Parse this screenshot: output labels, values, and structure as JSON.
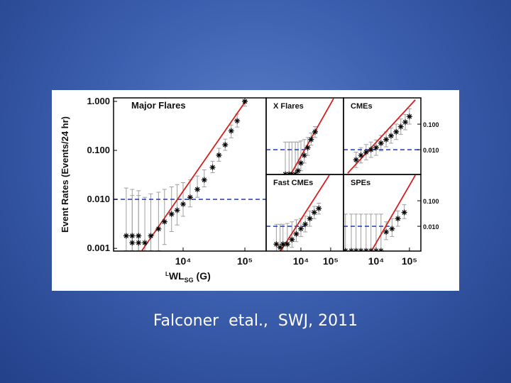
{
  "caption": "Falconer  etal.,  SWJ, 2011",
  "chart_data": [
    {
      "type": "scatter",
      "title": "Major Flares",
      "ylabel": "Event Rates (Events/24 hr)",
      "xlabel": [
        "L",
        "WL",
        "SG",
        " (G)"
      ],
      "xscale": "log",
      "yscale": "log",
      "xlim": [
        748,
        221000
      ],
      "ylim": [
        0.00088,
        1.18
      ],
      "xticks": [
        {
          "value": 10000,
          "label": "10⁴"
        },
        {
          "value": 100000,
          "label": "10⁵"
        }
      ],
      "yticks": [
        {
          "value": 1,
          "label": "1.000"
        },
        {
          "value": 0.1,
          "label": "0.100"
        },
        {
          "value": 0.01,
          "label": "0.010"
        },
        {
          "value": 0.001,
          "label": "0.001"
        }
      ],
      "x": [
        1200,
        1500,
        1900,
        1500,
        1900,
        2400,
        3000,
        4000,
        5000,
        6500,
        8000,
        10000,
        13000,
        17000,
        22000,
        30000,
        38000,
        48000,
        60000,
        75000,
        100000
      ],
      "y": [
        0.0018,
        0.0018,
        0.0018,
        0.0013,
        0.0013,
        0.0013,
        0.0018,
        0.0025,
        0.0035,
        0.005,
        0.006,
        0.008,
        0.011,
        0.016,
        0.025,
        0.045,
        0.08,
        0.13,
        0.25,
        0.4,
        1.0
      ],
      "ylow": [
        0.0009,
        0.0009,
        0.0009,
        0.0009,
        0.0009,
        0.0009,
        0.0009,
        0.0009,
        0.0012,
        0.0022,
        0.003,
        0.0045,
        0.007,
        0.011,
        0.018,
        0.035,
        0.06,
        0.1,
        0.18,
        0.3,
        0.8
      ],
      "yhigh": [
        0.017,
        0.016,
        0.015,
        0.012,
        0.012,
        0.011,
        0.013,
        0.014,
        0.016,
        0.018,
        0.02,
        0.022,
        0.025,
        0.03,
        0.04,
        0.06,
        0.11,
        0.17,
        0.33,
        0.55,
        1.05
      ],
      "fit_x": [
        2150,
        105000
      ],
      "fit_y": [
        0.0009,
        1.05
      ],
      "reference_y": 0.01,
      "reference_x_end": 221000,
      "color": "#000000",
      "error_color": "#a0a0a0",
      "fit_color": "#d42020",
      "reference_color": "#2848c8"
    },
    {
      "type": "scatter",
      "title": "X Flares",
      "xscale": "log",
      "yscale": "log",
      "xlim": [
        680,
        270000
      ],
      "ylim": [
        0.00107,
        1.07
      ],
      "x": [
        3000,
        4000,
        5000,
        6500,
        8000,
        10000,
        13000,
        17000,
        22000,
        30000
      ],
      "y": [
        0.0011,
        0.0011,
        0.0011,
        0.0011,
        0.0015,
        0.003,
        0.006,
        0.012,
        0.025,
        0.05
      ],
      "ylow": [
        0.001,
        0.001,
        0.001,
        0.001,
        0.001,
        0.0015,
        0.003,
        0.006,
        0.015,
        0.03
      ],
      "yhigh": [
        0.02,
        0.02,
        0.02,
        0.02,
        0.02,
        0.022,
        0.025,
        0.03,
        0.045,
        0.08
      ],
      "fit_x": [
        4600,
        125000
      ],
      "fit_y": [
        0.0011,
        1.0
      ],
      "reference_y": 0.01,
      "reference_x_end": 14000,
      "color": "#000000",
      "error_color": "#a0a0a0",
      "fit_color": "#d42020",
      "reference_color": "#2848c8"
    },
    {
      "type": "scatter",
      "title": "CMEs",
      "xscale": "log",
      "yscale": "log",
      "xlim": [
        1050,
        220000
      ],
      "ylim": [
        0.00107,
        1.07
      ],
      "yticks": [
        {
          "value": 0.1,
          "label": "0.100"
        },
        {
          "value": 0.01,
          "label": "0.010"
        }
      ],
      "x": [
        2500,
        3500,
        5000,
        7000,
        10000,
        14000,
        20000,
        28000,
        40000,
        55000,
        75000,
        100000
      ],
      "y": [
        0.004,
        0.006,
        0.008,
        0.01,
        0.012,
        0.018,
        0.025,
        0.035,
        0.05,
        0.08,
        0.12,
        0.2
      ],
      "ylow": [
        0.002,
        0.003,
        0.004,
        0.005,
        0.006,
        0.009,
        0.013,
        0.018,
        0.025,
        0.04,
        0.06,
        0.1
      ],
      "yhigh": [
        0.008,
        0.012,
        0.016,
        0.02,
        0.024,
        0.036,
        0.05,
        0.07,
        0.1,
        0.16,
        0.24,
        0.4
      ],
      "fit_x": [
        1400,
        150000
      ],
      "fit_y": [
        0.0012,
        0.9
      ],
      "reference_y": 0.01,
      "reference_x_end": 220000,
      "color": "#000000",
      "error_color": "#a0a0a0",
      "fit_color": "#d42020",
      "reference_color": "#2848c8"
    },
    {
      "type": "scatter",
      "title": "Fast CMEs",
      "xscale": "log",
      "yscale": "log",
      "xlim": [
        680,
        270000
      ],
      "ylim": [
        0.00107,
        1.07
      ],
      "xticks": [
        {
          "value": 10000,
          "label": "10⁴"
        },
        {
          "value": 100000,
          "label": "10⁵"
        }
      ],
      "x": [
        1500,
        2000,
        2500,
        3500,
        5000,
        7000,
        10000,
        14000,
        20000,
        28000,
        40000
      ],
      "y": [
        0.002,
        0.0015,
        0.002,
        0.002,
        0.003,
        0.005,
        0.008,
        0.012,
        0.02,
        0.035,
        0.05
      ],
      "ylow": [
        0.001,
        0.001,
        0.001,
        0.001,
        0.0015,
        0.0025,
        0.004,
        0.006,
        0.01,
        0.02,
        0.03
      ],
      "yhigh": [
        0.012,
        0.012,
        0.012,
        0.013,
        0.015,
        0.018,
        0.02,
        0.025,
        0.04,
        0.06,
        0.08
      ],
      "fit_x": [
        2000,
        90000
      ],
      "fit_y": [
        0.001,
        1.0
      ],
      "reference_y": 0.01,
      "reference_x_end": 14000,
      "color": "#000000",
      "error_color": "#a0a0a0",
      "fit_color": "#d42020",
      "reference_color": "#2848c8"
    },
    {
      "type": "scatter",
      "title": "SPEs",
      "xscale": "log",
      "yscale": "log",
      "xlim": [
        1050,
        220000
      ],
      "ylim": [
        0.00107,
        1.07
      ],
      "xticks": [
        {
          "value": 10000,
          "label": "10⁴"
        },
        {
          "value": 100000,
          "label": "10⁵"
        }
      ],
      "yticks": [
        {
          "value": 0.1,
          "label": "0.100"
        },
        {
          "value": 0.01,
          "label": "0.010"
        }
      ],
      "x": [
        1200,
        1800,
        2500,
        3500,
        5000,
        7000,
        10000,
        14000,
        20000,
        30000,
        45000,
        70000
      ],
      "y": [
        0.0011,
        0.0011,
        0.0011,
        0.0011,
        0.0011,
        0.0011,
        0.0011,
        0.0011,
        0.006,
        0.008,
        0.02,
        0.035
      ],
      "ylow": [
        0.001,
        0.001,
        0.001,
        0.001,
        0.001,
        0.001,
        0.001,
        0.001,
        0.003,
        0.004,
        0.01,
        0.02
      ],
      "yhigh": [
        0.03,
        0.03,
        0.03,
        0.03,
        0.03,
        0.03,
        0.03,
        0.03,
        0.015,
        0.02,
        0.04,
        0.07
      ],
      "fit_x": [
        7000,
        150000
      ],
      "fit_y": [
        0.001,
        1.0
      ],
      "reference_y": 0.01,
      "reference_x_end": 25000,
      "color": "#000000",
      "error_color": "#a0a0a0",
      "fit_color": "#d42020",
      "reference_color": "#2848c8"
    }
  ]
}
